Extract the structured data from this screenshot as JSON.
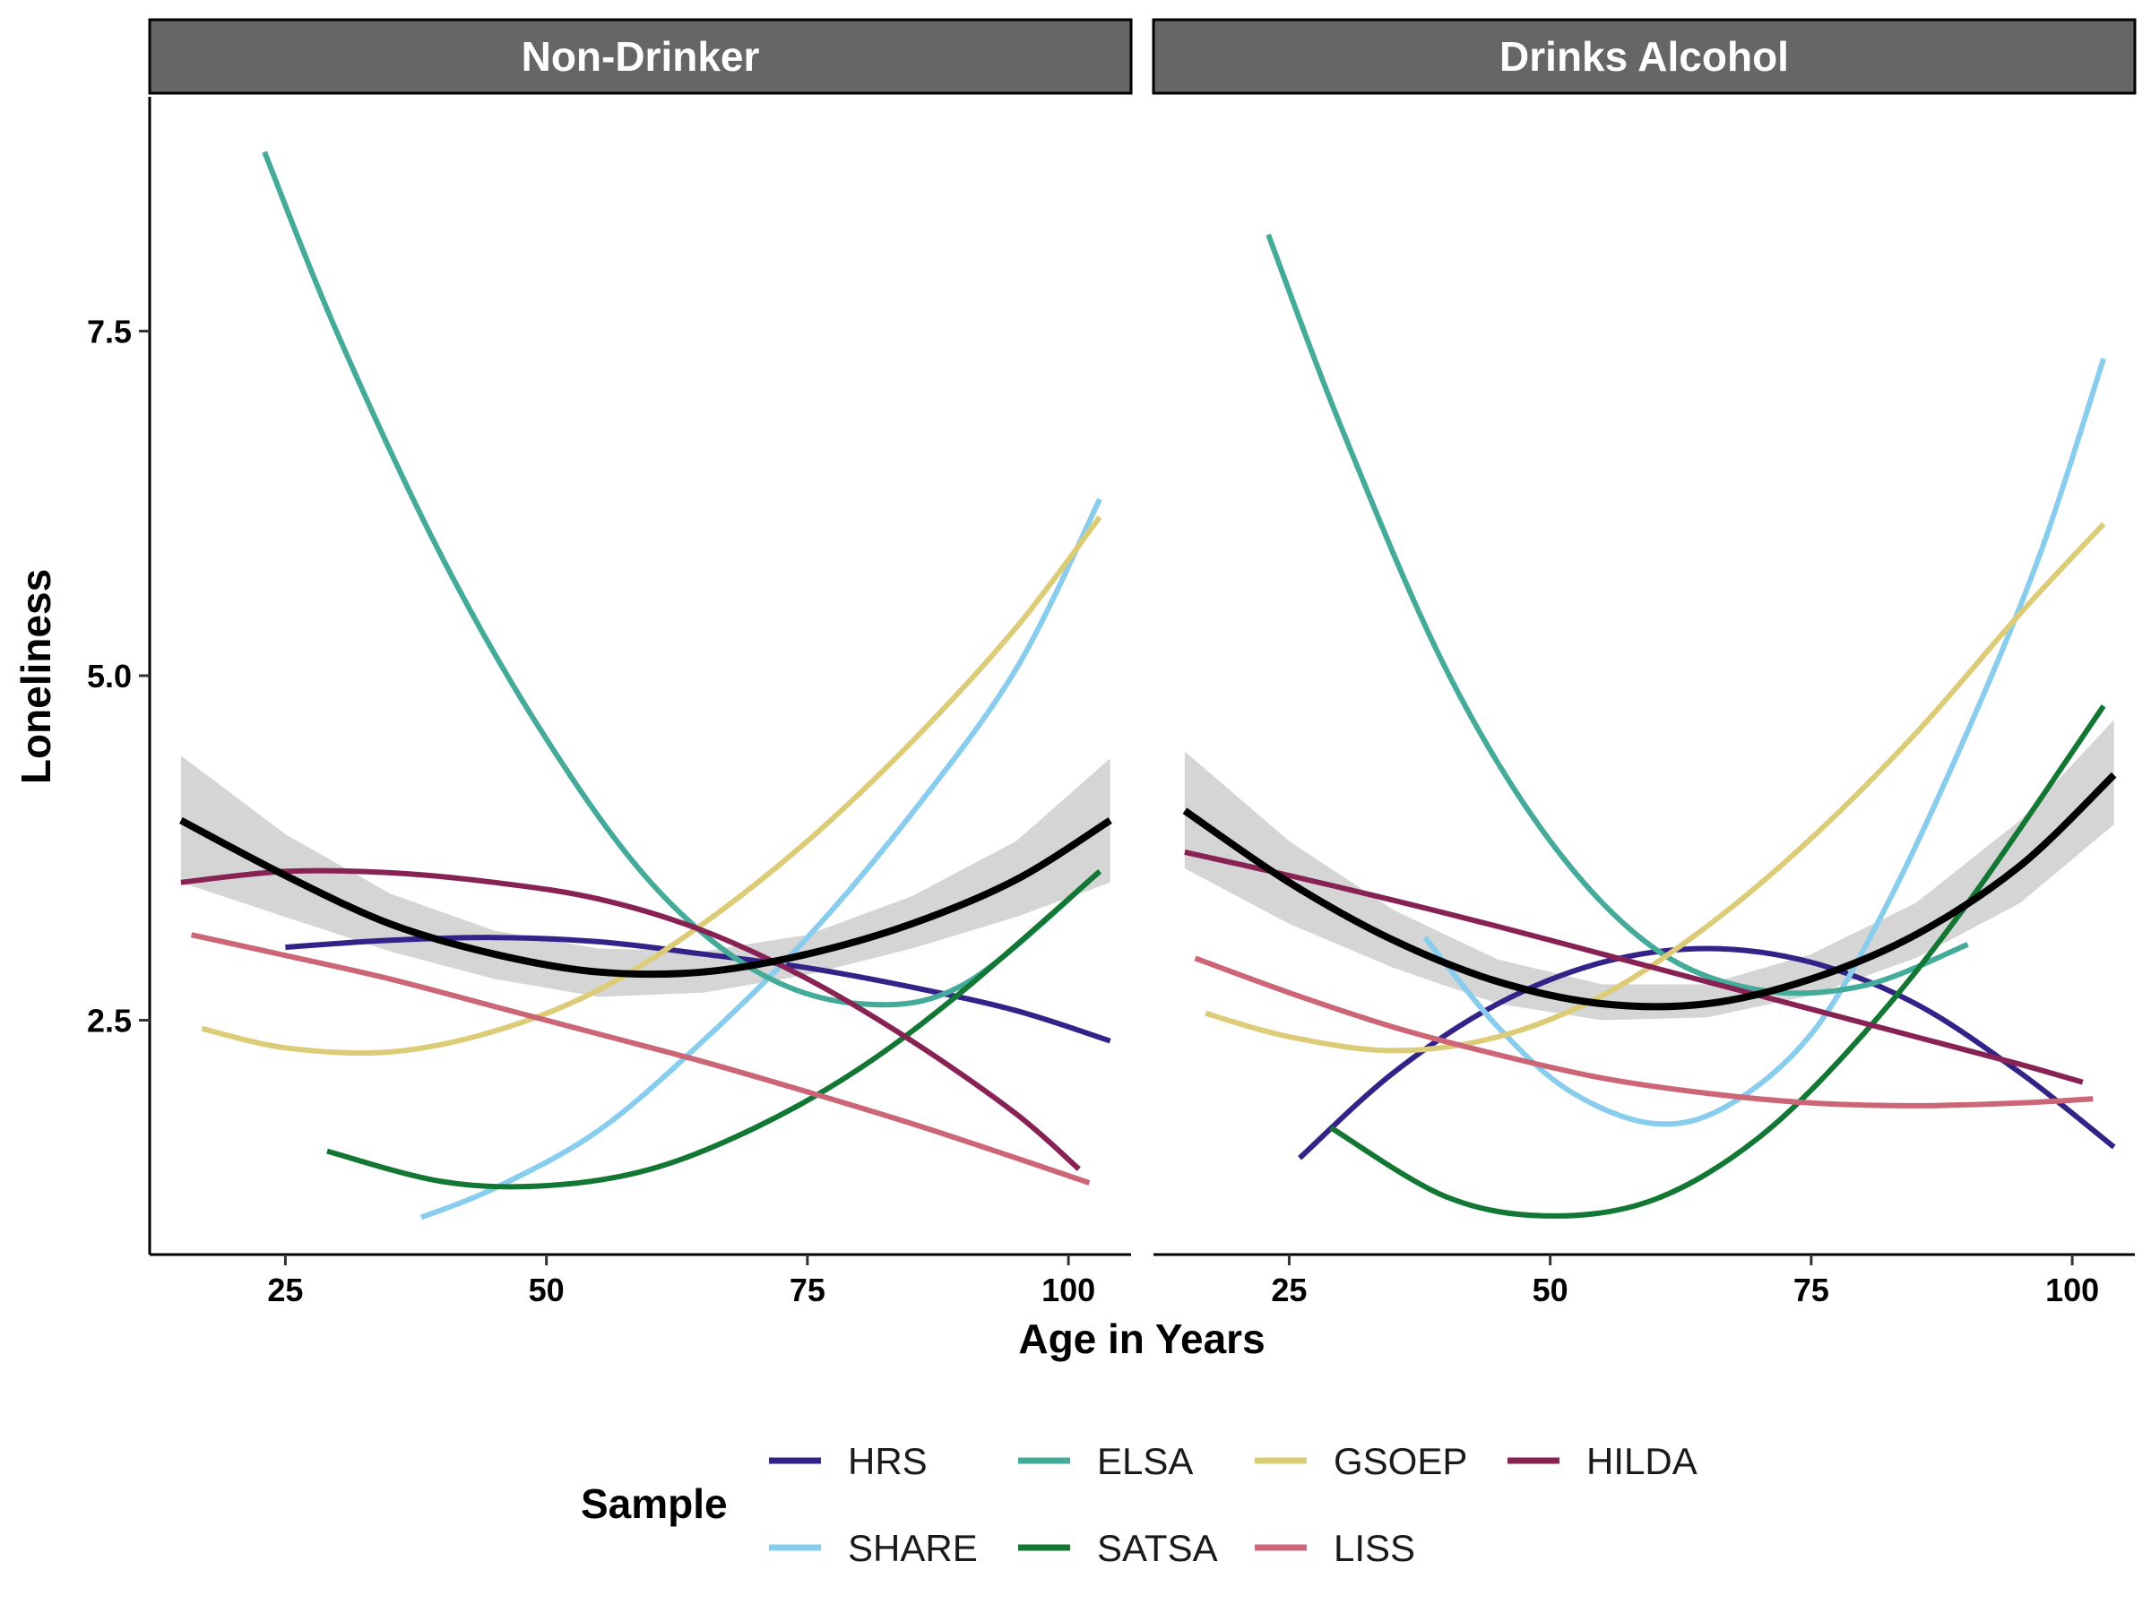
{
  "chart_data": {
    "type": "line",
    "xlabel": "Age in Years",
    "ylabel": "Loneliness",
    "xlim": [
      12,
      106
    ],
    "ylim": [
      0.8,
      9.2
    ],
    "x_ticks": [
      25,
      50,
      75,
      100
    ],
    "x_tick_labels": [
      "25",
      "50",
      "75",
      "100"
    ],
    "y_ticks": [
      2.5,
      5.0,
      7.5
    ],
    "y_tick_labels": [
      "2.5",
      "5.0",
      "7.5"
    ],
    "grid": false,
    "legend": {
      "title": "Sample",
      "position": "bottom",
      "entries": [
        "HRS",
        "ELSA",
        "GSOEP",
        "HILDA",
        "SHARE",
        "SATSA",
        "LISS"
      ]
    },
    "colors": {
      "HRS": "#332288",
      "SHARE": "#88CCEE",
      "ELSA": "#44AA99",
      "SATSA": "#117733",
      "GSOEP": "#DDCC77",
      "LISS": "#CC6677",
      "HILDA": "#882255",
      "overall": "#000000",
      "band": "#d3d3d3",
      "strip": "#666666"
    },
    "panels": [
      {
        "title": "Non-Drinker",
        "overall": {
          "x": [
            15,
            25,
            35,
            45,
            55,
            65,
            75,
            85,
            95,
            104
          ],
          "y": [
            3.95,
            3.55,
            3.2,
            2.98,
            2.85,
            2.85,
            2.98,
            3.2,
            3.52,
            3.95
          ],
          "lower": [
            3.5,
            3.25,
            3.0,
            2.8,
            2.67,
            2.7,
            2.83,
            3.02,
            3.25,
            3.5
          ],
          "upper": [
            4.42,
            3.85,
            3.42,
            3.15,
            3.02,
            3.0,
            3.12,
            3.4,
            3.8,
            4.4
          ]
        },
        "series": [
          {
            "name": "HRS",
            "x": [
              25,
              35,
              45,
              55,
              65,
              75,
              85,
              95,
              104
            ],
            "y": [
              3.03,
              3.08,
              3.1,
              3.07,
              2.98,
              2.88,
              2.74,
              2.57,
              2.35
            ]
          },
          {
            "name": "SHARE",
            "x": [
              38,
              45,
              55,
              65,
              75,
              85,
              95,
              103
            ],
            "y": [
              1.07,
              1.28,
              1.7,
              2.35,
              3.1,
              4.0,
              5.05,
              6.28
            ]
          },
          {
            "name": "ELSA",
            "x": [
              23,
              30,
              40,
              50,
              60,
              70,
              80,
              90,
              103
            ],
            "y": [
              8.8,
              7.48,
              5.86,
              4.54,
              3.5,
              2.86,
              2.62,
              2.76,
              3.58
            ]
          },
          {
            "name": "SATSA",
            "x": [
              29,
              40,
              50,
              60,
              70,
              80,
              90,
              103
            ],
            "y": [
              1.55,
              1.33,
              1.3,
              1.42,
              1.72,
              2.15,
              2.72,
              3.58
            ]
          },
          {
            "name": "GSOEP",
            "x": [
              17,
              25,
              35,
              45,
              55,
              65,
              75,
              85,
              95,
              103
            ],
            "y": [
              2.44,
              2.3,
              2.27,
              2.42,
              2.72,
              3.2,
              3.8,
              4.52,
              5.35,
              6.15
            ]
          },
          {
            "name": "LISS",
            "x": [
              16,
              25,
              35,
              45,
              55,
              65,
              75,
              85,
              95,
              102
            ],
            "y": [
              3.12,
              2.97,
              2.8,
              2.6,
              2.4,
              2.2,
              1.98,
              1.75,
              1.5,
              1.32
            ]
          },
          {
            "name": "HILDA",
            "x": [
              15,
              25,
              35,
              45,
              55,
              65,
              75,
              85,
              95,
              101
            ],
            "y": [
              3.5,
              3.58,
              3.57,
              3.5,
              3.38,
              3.15,
              2.8,
              2.35,
              1.82,
              1.42
            ]
          }
        ]
      },
      {
        "title": "Drinks Alcohol",
        "overall": {
          "x": [
            15,
            25,
            35,
            45,
            55,
            65,
            75,
            85,
            95,
            104
          ],
          "y": [
            4.02,
            3.5,
            3.08,
            2.78,
            2.62,
            2.62,
            2.8,
            3.12,
            3.62,
            4.28
          ],
          "lower": [
            3.6,
            3.2,
            2.88,
            2.62,
            2.5,
            2.52,
            2.68,
            2.95,
            3.35,
            3.92
          ],
          "upper": [
            4.45,
            3.8,
            3.3,
            2.94,
            2.76,
            2.76,
            2.98,
            3.35,
            3.95,
            4.68
          ]
        },
        "series": [
          {
            "name": "HRS",
            "x": [
              26,
              35,
              45,
              55,
              65,
              75,
              85,
              95,
              104
            ],
            "y": [
              1.5,
              2.12,
              2.62,
              2.92,
              3.02,
              2.92,
              2.62,
              2.12,
              1.58
            ]
          },
          {
            "name": "SHARE",
            "x": [
              38,
              45,
              52,
              60,
              67,
              75,
              82,
              90,
              97,
              103
            ],
            "y": [
              3.1,
              2.45,
              1.98,
              1.75,
              1.88,
              2.4,
              3.3,
              4.6,
              5.9,
              7.3
            ]
          },
          {
            "name": "ELSA",
            "x": [
              23,
              30,
              40,
              50,
              60,
              70,
              80,
              90
            ],
            "y": [
              8.2,
              6.8,
              5.05,
              3.8,
              3.02,
              2.72,
              2.75,
              3.05
            ]
          },
          {
            "name": "SATSA",
            "x": [
              29,
              40,
              50,
              60,
              70,
              80,
              90,
              103
            ],
            "y": [
              1.72,
              1.22,
              1.08,
              1.2,
              1.65,
              2.4,
              3.35,
              4.78
            ]
          },
          {
            "name": "GSOEP",
            "x": [
              17,
              25,
              35,
              45,
              55,
              65,
              75,
              85,
              95,
              103
            ],
            "y": [
              2.55,
              2.38,
              2.28,
              2.38,
              2.68,
              3.18,
              3.82,
              4.58,
              5.45,
              6.1
            ]
          },
          {
            "name": "LISS",
            "x": [
              16,
              25,
              35,
              45,
              55,
              65,
              75,
              85,
              95,
              102
            ],
            "y": [
              2.95,
              2.7,
              2.45,
              2.25,
              2.08,
              1.97,
              1.9,
              1.88,
              1.9,
              1.93
            ]
          },
          {
            "name": "HILDA",
            "x": [
              15,
              25,
              35,
              45,
              55,
              65,
              75,
              85,
              95,
              101
            ],
            "y": [
              3.72,
              3.55,
              3.37,
              3.18,
              2.98,
              2.78,
              2.58,
              2.38,
              2.18,
              2.05
            ]
          }
        ]
      }
    ]
  }
}
